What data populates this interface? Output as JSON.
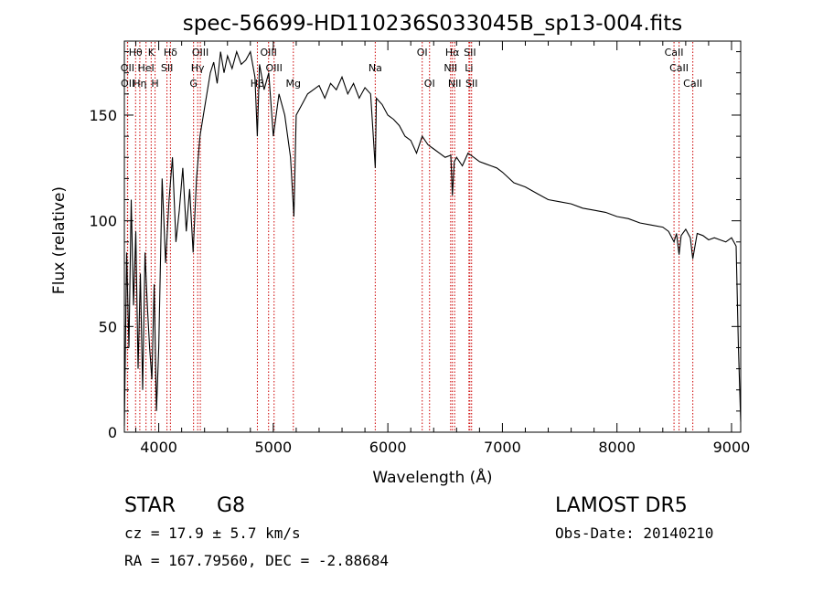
{
  "chart_data": {
    "type": "line",
    "title": "spec-56699-HD110236S033045B_sp13-004.fits",
    "xlabel": "Wavelength (Å)",
    "ylabel": "Flux (relative)",
    "xlim": [
      3700,
      9080
    ],
    "ylim": [
      0,
      185
    ],
    "xticks": [
      4000,
      5000,
      6000,
      7000,
      8000,
      9000
    ],
    "yticks": [
      0,
      50,
      100,
      150
    ],
    "grid": false,
    "series": [
      {
        "x": [
          3700,
          3720,
          3740,
          3760,
          3780,
          3800,
          3820,
          3840,
          3860,
          3880,
          3900,
          3920,
          3940,
          3960,
          3980,
          4000,
          4030,
          4060,
          4090,
          4120,
          4150,
          4180,
          4210,
          4240,
          4270,
          4300,
          4330,
          4360,
          4390,
          4420,
          4450,
          4480,
          4510,
          4540,
          4570,
          4600,
          4640,
          4680,
          4720,
          4760,
          4800,
          4840,
          4861,
          4880,
          4920,
          4960,
          5000,
          5050,
          5100,
          5150,
          5180,
          5200,
          5250,
          5300,
          5350,
          5400,
          5450,
          5500,
          5550,
          5600,
          5650,
          5700,
          5750,
          5800,
          5850,
          5890,
          5900,
          5950,
          6000,
          6050,
          6100,
          6150,
          6200,
          6250,
          6300,
          6350,
          6400,
          6450,
          6500,
          6550,
          6563,
          6580,
          6600,
          6650,
          6700,
          6750,
          6800,
          6850,
          6900,
          6950,
          7000,
          7100,
          7200,
          7300,
          7400,
          7500,
          7600,
          7700,
          7800,
          7900,
          8000,
          8100,
          8200,
          8300,
          8400,
          8450,
          8498,
          8520,
          8542,
          8560,
          8600,
          8640,
          8662,
          8700,
          8750,
          8800,
          8850,
          8900,
          8950,
          9000,
          9040,
          9060,
          9080
        ],
        "y": [
          3,
          85,
          40,
          110,
          60,
          95,
          30,
          75,
          20,
          85,
          60,
          40,
          25,
          70,
          10,
          40,
          120,
          80,
          110,
          130,
          90,
          105,
          125,
          95,
          115,
          85,
          120,
          140,
          150,
          160,
          170,
          175,
          165,
          180,
          170,
          178,
          172,
          180,
          174,
          176,
          180,
          168,
          140,
          174,
          162,
          170,
          140,
          160,
          150,
          130,
          102,
          150,
          155,
          160,
          162,
          164,
          158,
          165,
          162,
          168,
          160,
          165,
          158,
          163,
          160,
          125,
          158,
          155,
          150,
          148,
          145,
          140,
          138,
          132,
          140,
          136,
          134,
          132,
          130,
          131,
          112,
          128,
          130,
          126,
          132,
          130,
          128,
          127,
          126,
          125,
          123,
          118,
          116,
          113,
          110,
          109,
          108,
          106,
          105,
          104,
          102,
          101,
          99,
          98,
          97,
          95,
          90,
          94,
          84,
          93,
          96,
          92,
          82,
          94,
          93,
          91,
          92,
          91,
          90,
          92,
          88,
          40,
          5
        ]
      }
    ],
    "lines": [
      {
        "label": "Hθ",
        "x": 3798,
        "row": 0
      },
      {
        "label": "K",
        "x": 3934,
        "row": 0
      },
      {
        "label": "Hδ",
        "x": 4102,
        "row": 0
      },
      {
        "label": "OIII",
        "x": 4363,
        "row": 0
      },
      {
        "label": "OIII",
        "x": 4959,
        "row": 0
      },
      {
        "label": "OI",
        "x": 6300,
        "row": 0
      },
      {
        "label": "Hα",
        "x": 6563,
        "row": 0
      },
      {
        "label": "SII",
        "x": 6716,
        "row": 0
      },
      {
        "label": "CaII",
        "x": 8498,
        "row": 0
      },
      {
        "label": "OII",
        "x": 3727,
        "row": 1
      },
      {
        "label": "HeI",
        "x": 3889,
        "row": 1
      },
      {
        "label": "SII",
        "x": 4072,
        "row": 1
      },
      {
        "label": "Hγ",
        "x": 4340,
        "row": 1
      },
      {
        "label": "OIII",
        "x": 5007,
        "row": 1
      },
      {
        "label": "Na",
        "x": 5890,
        "row": 1
      },
      {
        "label": "NII",
        "x": 6548,
        "row": 1
      },
      {
        "label": "Li",
        "x": 6708,
        "row": 1
      },
      {
        "label": "CaII",
        "x": 8542,
        "row": 1
      },
      {
        "label": "OII",
        "x": 3729,
        "row": 2
      },
      {
        "label": "Hη",
        "x": 3835,
        "row": 2
      },
      {
        "label": "H",
        "x": 3968,
        "row": 2
      },
      {
        "label": "G",
        "x": 4304,
        "row": 2
      },
      {
        "label": "Hβ",
        "x": 4861,
        "row": 2
      },
      {
        "label": "Mg",
        "x": 5175,
        "row": 2
      },
      {
        "label": "OI",
        "x": 6364,
        "row": 2
      },
      {
        "label": "NII",
        "x": 6583,
        "row": 2
      },
      {
        "label": "SII",
        "x": 6731,
        "row": 2
      },
      {
        "label": "CaII",
        "x": 8662,
        "row": 2
      }
    ],
    "line_color": "#cc0000"
  },
  "info": {
    "object_class": "STAR",
    "subclass": "G8",
    "survey": "LAMOST DR5",
    "redshift": "cz = 17.9 ± 5.7 km/s",
    "obs_date": "Obs-Date: 20140210",
    "coords": "RA = 167.79560, DEC =  -2.88684"
  }
}
